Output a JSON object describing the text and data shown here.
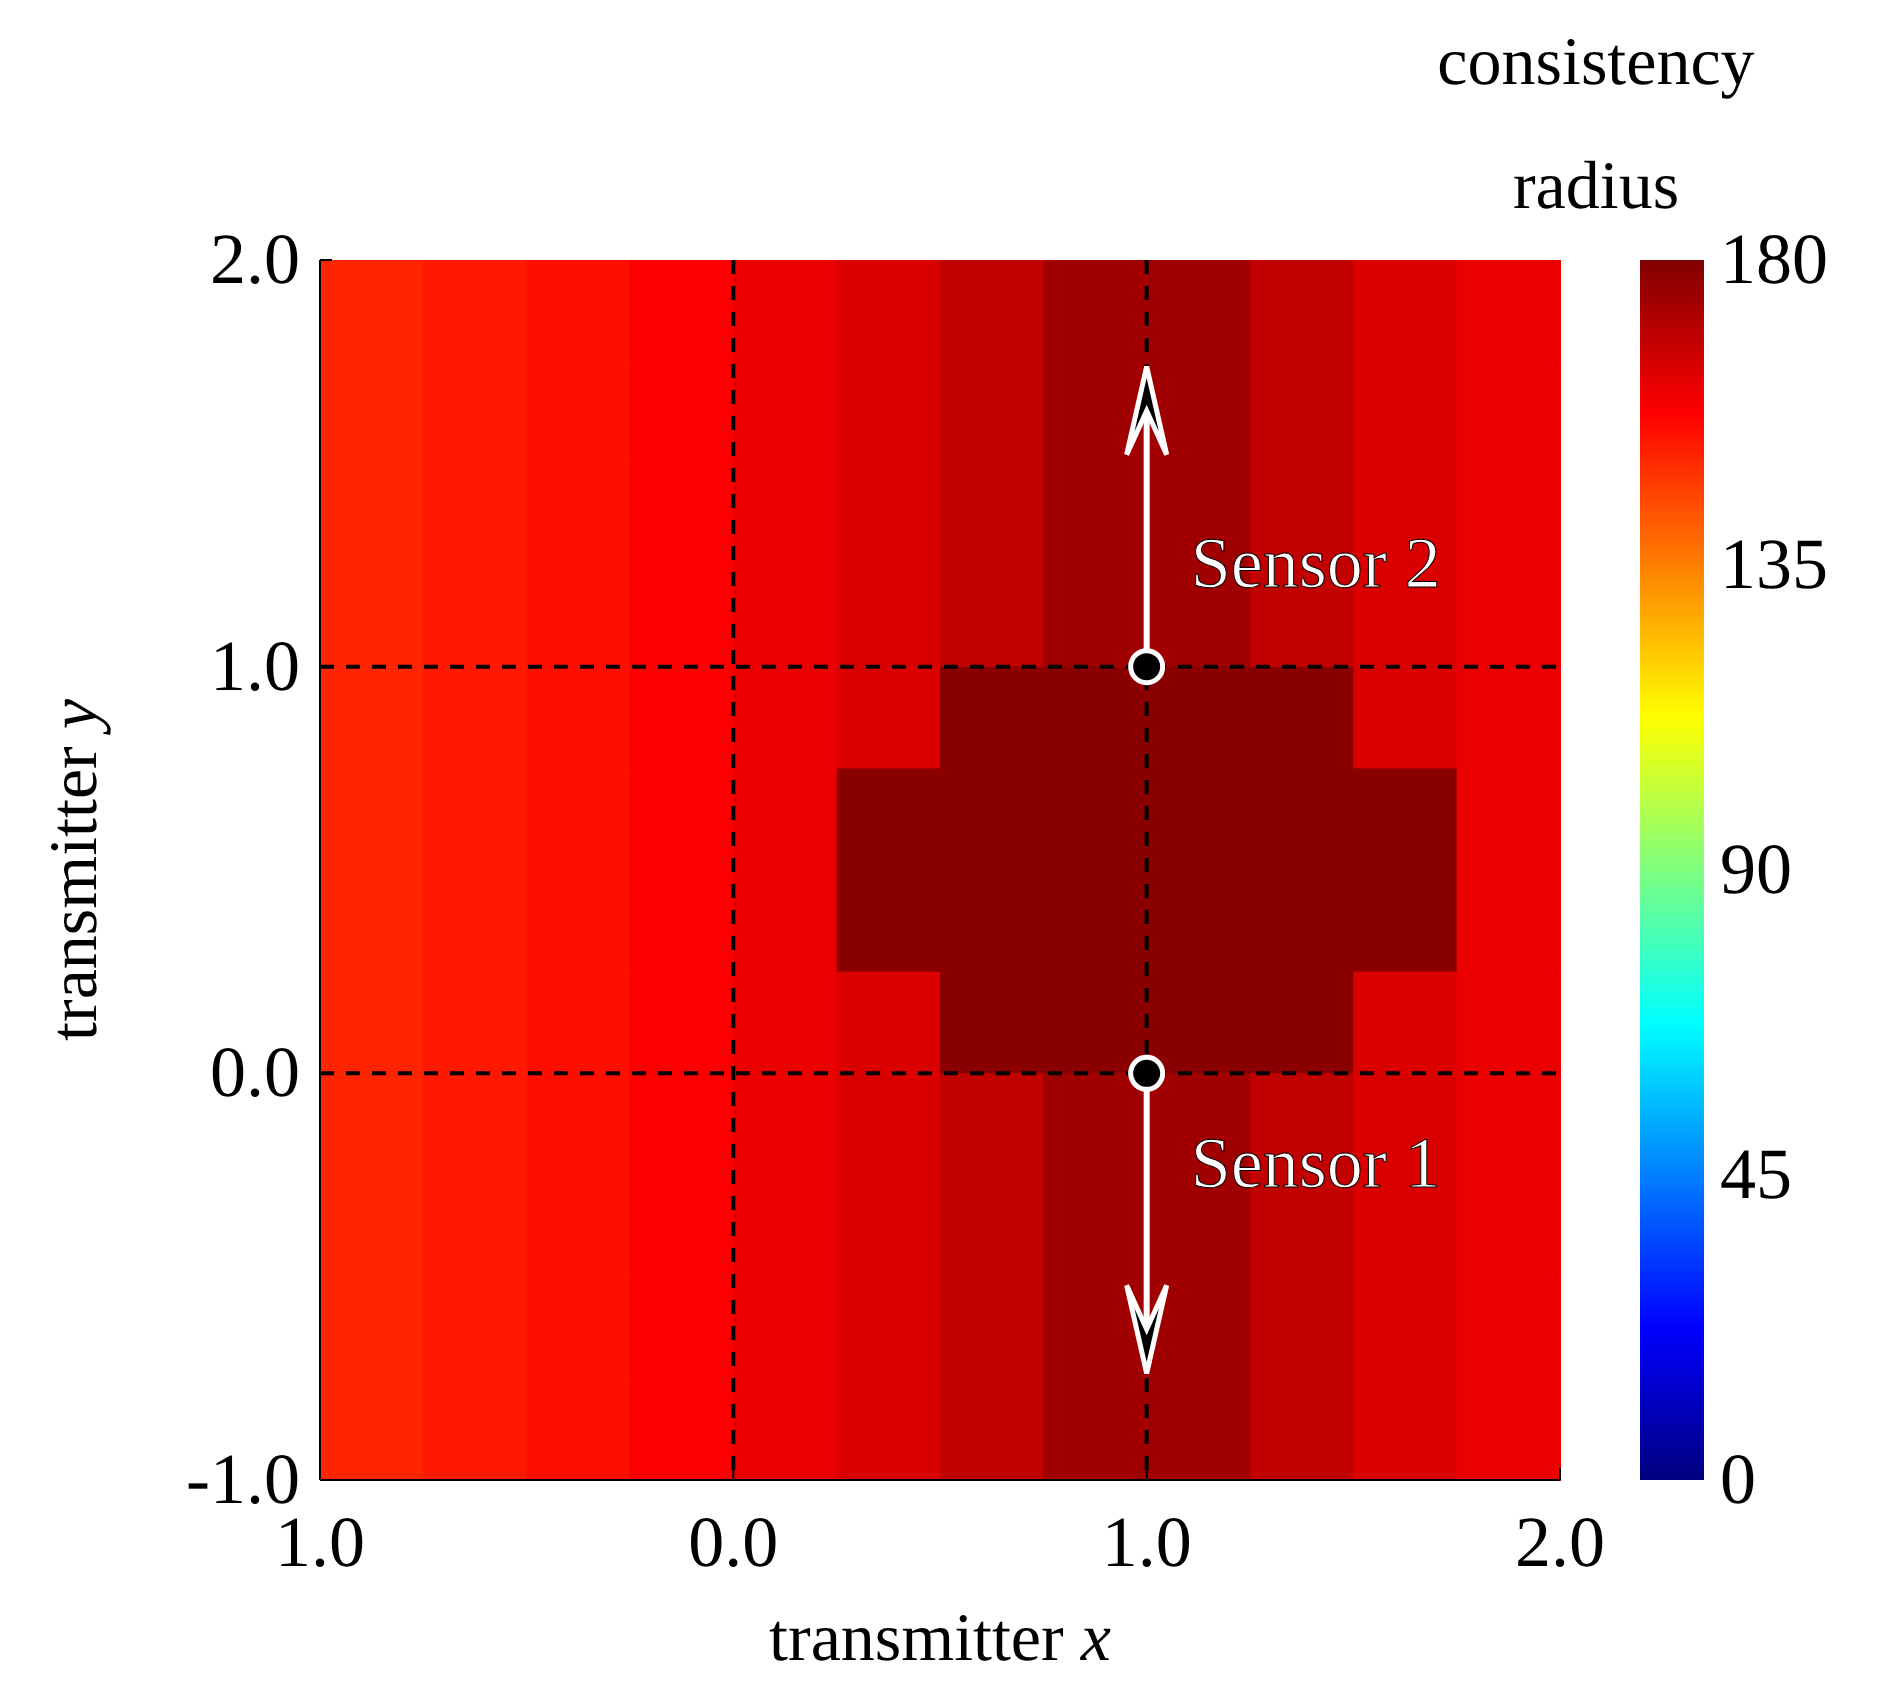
{
  "chart_data": {
    "type": "heatmap",
    "xlabel": "transmitter x",
    "ylabel": "transmitter y",
    "clabel": "consistency radius",
    "xlim": [
      -1,
      2
    ],
    "xticks": [
      {
        "value": -1,
        "label": "1.0"
      },
      {
        "value": 0,
        "label": "0.0"
      },
      {
        "value": 1,
        "label": "1.0"
      },
      {
        "value": 2,
        "label": "2.0"
      }
    ],
    "ylim": [
      -1,
      2
    ],
    "yticks": [
      {
        "value": -1,
        "label": "-1.0"
      },
      {
        "value": 0,
        "label": "0.0"
      },
      {
        "value": 1,
        "label": "1.0"
      },
      {
        "value": 2,
        "label": "2.0"
      }
    ],
    "clim": [
      0,
      180
    ],
    "cticks": [
      0,
      45,
      90,
      135,
      180
    ],
    "grid": true,
    "cells": [
      [
        151,
        153,
        155,
        158,
        161,
        164,
        168,
        174,
        174,
        168,
        164,
        161
      ],
      [
        151,
        153,
        155,
        158,
        161,
        164,
        168,
        174,
        174,
        168,
        164,
        161
      ],
      [
        151,
        153,
        155,
        158,
        161,
        164,
        168,
        174,
        174,
        168,
        164,
        161
      ],
      [
        151,
        153,
        155,
        158,
        161,
        164,
        168,
        174,
        174,
        168,
        164,
        161
      ],
      [
        151,
        153,
        155,
        158,
        161,
        164,
        178,
        178,
        178,
        178,
        164,
        161
      ],
      [
        151,
        153,
        155,
        158,
        161,
        178,
        178,
        178,
        178,
        178,
        178,
        161
      ],
      [
        151,
        153,
        155,
        158,
        161,
        178,
        178,
        178,
        178,
        178,
        178,
        161
      ],
      [
        151,
        153,
        155,
        158,
        161,
        164,
        178,
        178,
        178,
        178,
        164,
        161
      ],
      [
        151,
        153,
        155,
        158,
        161,
        164,
        168,
        174,
        174,
        168,
        164,
        161
      ],
      [
        151,
        153,
        155,
        158,
        161,
        164,
        168,
        174,
        174,
        168,
        164,
        161
      ],
      [
        151,
        153,
        155,
        158,
        161,
        164,
        168,
        174,
        174,
        168,
        164,
        161
      ],
      [
        151,
        153,
        155,
        158,
        161,
        164,
        168,
        174,
        174,
        168,
        164,
        161
      ]
    ],
    "annotations": [
      {
        "text": "Sensor 2",
        "x": 1,
        "y": 1
      },
      {
        "text": "Sensor 1",
        "x": 1,
        "y": 0
      }
    ]
  }
}
